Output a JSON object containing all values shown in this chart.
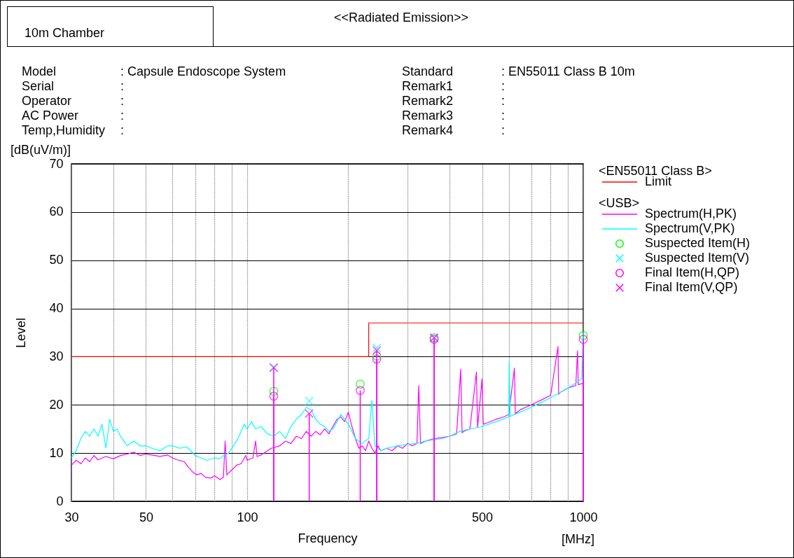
{
  "chart_data": {
    "type": "line",
    "title": "<<Radiated Emission>>",
    "xlabel": "Frequency",
    "ylabel": "Level",
    "legend_title": "<EN55011 Class B>",
    "legend": "right",
    "log": "x",
    "grid": true,
    "xlim": [
      30,
      1000
    ],
    "ylim": [
      0,
      70
    ],
    "xticks": [
      30,
      {
        "value": 40,
        "label": null
      },
      50,
      {
        "value": 60,
        "label": null
      },
      {
        "value": 70,
        "label": null
      },
      {
        "value": 80,
        "label": null
      },
      {
        "value": 90,
        "label": null
      },
      100,
      {
        "value": 200,
        "label": null
      },
      {
        "value": 300,
        "label": null
      },
      {
        "value": 400,
        "label": null
      },
      500,
      {
        "value": 600,
        "label": null
      },
      {
        "value": 700,
        "label": null
      },
      {
        "value": 800,
        "label": null
      },
      {
        "value": 900,
        "label": null
      },
      1000
    ],
    "yticks": [
      0,
      10,
      20,
      30,
      40,
      50,
      60,
      70
    ],
    "annotations": [
      "10m Chamber",
      "Model",
      "Serial",
      "Operator",
      "AC Power",
      "Temp,Humidity",
      ": Capsule Endoscope System",
      ":",
      ":",
      ":",
      ":",
      "Standard",
      "Remark1",
      "Remark2",
      "Remark3",
      "Remark4",
      ": EN55011 Class B 10m",
      ":",
      ":",
      ":",
      ":",
      "[dB(uV/m)]",
      "[MHz]",
      "<USB>"
    ],
    "series": [
      {
        "name": "Limit",
        "type": "step",
        "color": "#ff0000",
        "x": [
          30,
          230,
          1000
        ],
        "values": [
          30,
          37,
          37
        ]
      },
      {
        "name": "Spectrum(H,PK)",
        "type": "line",
        "color": "#ff00ff",
        "x": [
          30,
          31,
          32,
          33,
          34,
          35,
          36,
          38,
          40,
          42,
          44,
          46,
          48,
          50,
          52,
          55,
          58,
          60,
          62,
          65,
          67,
          69,
          71,
          73,
          75,
          78,
          80,
          83,
          85,
          86,
          87,
          90,
          93,
          96,
          99,
          100,
          104,
          106,
          107,
          110,
          115,
          118,
          125,
          130,
          135,
          140,
          145,
          150,
          155,
          160,
          165,
          170,
          175,
          180,
          185,
          190,
          195,
          200,
          205,
          210,
          215,
          220,
          225,
          230,
          235,
          240,
          245,
          250,
          260,
          270,
          280,
          290,
          300,
          310,
          320,
          324,
          328,
          340,
          360,
          380,
          400,
          420,
          432,
          436,
          440,
          460,
          481,
          485,
          500,
          504,
          520,
          550,
          580,
          600,
          624,
          628,
          650,
          700,
          750,
          800,
          841,
          845,
          850,
          900,
          950,
          962,
          966,
          1000
        ],
        "values": [
          7.5,
          8.5,
          7.8,
          9,
          8.2,
          9.5,
          8.6,
          9.3,
          8.8,
          9.5,
          9.8,
          10.2,
          9.5,
          9.8,
          9.6,
          9.3,
          9.6,
          9,
          8.6,
          8.2,
          7,
          6,
          5.5,
          5.8,
          5,
          4.8,
          5.3,
          4.5,
          5,
          12.5,
          5.5,
          6.5,
          7.5,
          7.8,
          9.5,
          8.5,
          9,
          12.5,
          9.3,
          9.6,
          10.5,
          11,
          11.5,
          12.5,
          12,
          13.5,
          13,
          14.5,
          13.5,
          14.5,
          13.8,
          15,
          14,
          15.5,
          17,
          17.5,
          16.5,
          18.5,
          15.5,
          13,
          11,
          11.5,
          10.5,
          12.5,
          11,
          10,
          11.5,
          10.5,
          11,
          10.5,
          11.5,
          11,
          12,
          11.5,
          12,
          24,
          12,
          12.5,
          13,
          13.2,
          13.5,
          14,
          27.4,
          14.2,
          14.5,
          15,
          26.8,
          15.3,
          25.4,
          16,
          16.3,
          17,
          17.5,
          18,
          27.6,
          18.2,
          19,
          20,
          21,
          22,
          32.1,
          22.2,
          22.5,
          23.5,
          24,
          31.2,
          24.2,
          24.5
        ]
      },
      {
        "name": "Spectrum(V,PK)",
        "type": "line",
        "color": "#00ffff",
        "x": [
          30,
          31,
          32,
          33,
          34,
          35,
          36,
          37,
          38,
          39,
          40,
          41,
          42,
          44,
          46,
          48,
          50,
          52,
          55,
          58,
          60,
          63,
          66,
          68,
          70,
          73,
          76,
          80,
          83,
          85,
          88,
          90,
          93,
          96,
          98,
          100,
          103,
          106,
          110,
          115,
          120,
          125,
          130,
          135,
          140,
          145,
          150,
          155,
          160,
          165,
          170,
          175,
          180,
          185,
          190,
          195,
          200,
          205,
          210,
          215,
          220,
          230,
          235,
          240,
          250,
          260,
          280,
          300,
          320,
          340,
          360,
          380,
          400,
          430,
          460,
          500,
          550,
          600,
          602,
          606,
          650,
          700,
          750,
          800,
          850,
          900,
          950,
          990,
          1000
        ],
        "values": [
          9,
          10.5,
          13,
          14.5,
          13.5,
          15,
          13.5,
          16,
          11,
          17,
          14.5,
          15,
          13.5,
          11.5,
          12.5,
          11.5,
          11.5,
          11,
          10.5,
          11.5,
          11.5,
          11,
          11.3,
          10.5,
          9.5,
          9,
          8.5,
          9,
          8.8,
          9.5,
          10,
          11,
          12.5,
          14.5,
          16,
          15,
          16.5,
          15,
          15.5,
          14,
          13.5,
          14.5,
          13,
          15.5,
          17,
          18,
          19.5,
          19,
          17,
          16,
          15.5,
          14.5,
          15,
          16.5,
          18,
          17,
          16,
          14.5,
          13,
          12.5,
          12,
          13,
          20.9,
          11.5,
          10.5,
          11,
          11.5,
          11.8,
          12,
          12.5,
          12.8,
          13,
          13.5,
          14.5,
          15,
          15.5,
          16.5,
          17.5,
          28.9,
          17.6,
          18.5,
          19.5,
          20.5,
          21.5,
          22.5,
          23.5,
          24.5,
          25.5,
          35
        ]
      },
      {
        "name": "Suspected Item(H)",
        "type": "scatter",
        "marker": "circle",
        "color": "#00ff00",
        "x": [
          120,
          217,
          243,
          360,
          1000
        ],
        "values": [
          22.8,
          24.3,
          30.1,
          33.9,
          34.4
        ]
      },
      {
        "name": "Suspected Item(V)",
        "type": "scatter",
        "marker": "cross",
        "color": "#00ffff",
        "x": [
          120,
          153,
          243,
          360
        ],
        "values": [
          27.8,
          20.8,
          31.8,
          34
        ]
      },
      {
        "name": "Final Item(H,QP)",
        "type": "lollipop",
        "marker": "circle",
        "color": "#ff00ff",
        "x": [
          120,
          217,
          243,
          360,
          1000
        ],
        "values": [
          21.8,
          23,
          29.5,
          33.6,
          33.6
        ]
      },
      {
        "name": "Final Item(V,QP)",
        "type": "lollipop",
        "marker": "cross",
        "color": "#ff00ff",
        "x": [
          120,
          153,
          243,
          360
        ],
        "values": [
          27.7,
          18.2,
          31.3,
          33.9
        ]
      }
    ]
  }
}
